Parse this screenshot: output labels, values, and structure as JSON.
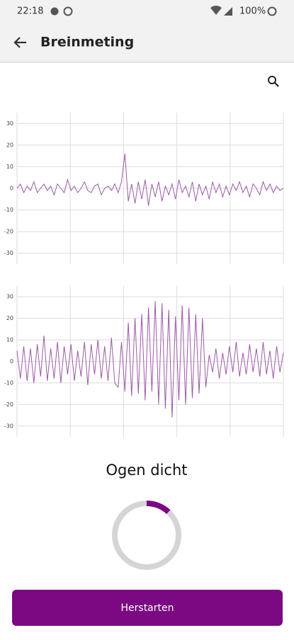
{
  "status_bar": {
    "time": "22:18",
    "battery": "100%"
  },
  "app_bar": {
    "title": "Breinmeting"
  },
  "chart_data": [
    {
      "type": "line",
      "color": "#9c5aa8",
      "ylim": [
        -35,
        35
      ],
      "yticks": [
        -30,
        -20,
        -10,
        0,
        10,
        20,
        30
      ],
      "grid": true,
      "values": [
        0,
        2,
        -2,
        1,
        -1,
        3,
        -2,
        0,
        2,
        -1,
        1,
        -3,
        2,
        0,
        -2,
        4,
        -1,
        1,
        -2,
        0,
        3,
        -1,
        -2,
        1,
        2,
        -3,
        0,
        1,
        -1,
        2,
        -2,
        3,
        16,
        -6,
        2,
        -7,
        3,
        -5,
        4,
        -8,
        2,
        -4,
        3,
        -6,
        1,
        -3,
        2,
        -5,
        4,
        -2,
        1,
        -4,
        3,
        -6,
        2,
        -3,
        1,
        -5,
        3,
        -2,
        2,
        -4,
        1,
        -3,
        2,
        -1,
        3,
        -2,
        1,
        -4,
        2,
        0,
        -3,
        3,
        -1,
        2,
        -2,
        1,
        -1,
        0
      ]
    },
    {
      "type": "line",
      "color": "#9c5aa8",
      "ylim": [
        -35,
        35
      ],
      "yticks": [
        -30,
        -20,
        -10,
        0,
        10,
        20,
        30
      ],
      "grid": true,
      "values": [
        5,
        -8,
        7,
        -9,
        6,
        -10,
        8,
        -7,
        12,
        -9,
        6,
        -8,
        9,
        -10,
        7,
        -6,
        8,
        -9,
        5,
        -7,
        9,
        -11,
        8,
        -6,
        10,
        -8,
        7,
        -9,
        11,
        -10,
        -12,
        9,
        -14,
        18,
        -16,
        20,
        -15,
        22,
        -18,
        25,
        -14,
        28,
        -20,
        27,
        -22,
        24,
        -26,
        21,
        -18,
        26,
        -20,
        25,
        -17,
        22,
        -15,
        20,
        -12,
        3,
        -5,
        6,
        -8,
        4,
        -6,
        7,
        -5,
        9,
        -7,
        4,
        -6,
        8,
        -5,
        6,
        -7,
        9,
        -6,
        5,
        -8,
        7,
        -5,
        4
      ]
    }
  ],
  "state": {
    "label": "Ogen dicht",
    "progress": 12,
    "progress_color": "#7b0a82"
  },
  "button": {
    "label": "Herstarten",
    "color": "#7b0a82"
  }
}
